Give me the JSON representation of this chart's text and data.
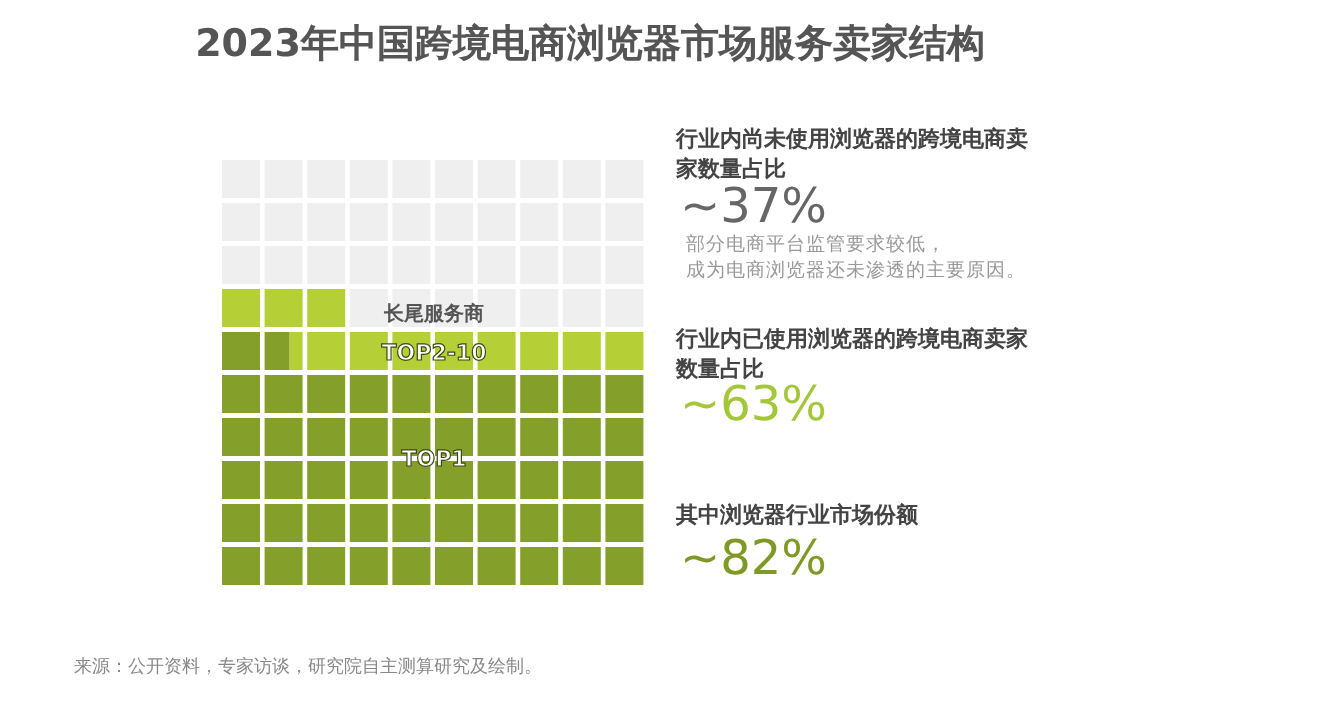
{
  "chart_data": {
    "type": "other",
    "title": "2023年中国跨境电商浏览器市场服务卖家结构",
    "values": [
      37,
      63,
      82
    ],
    "value_labels": [
      "~37%",
      "~63%",
      "~82%"
    ],
    "colors": [
      "#efefef",
      "#b5cf36",
      "#84a02a"
    ],
    "annotations": [
      "长尾服务商",
      "TOP2-10",
      "TOP1",
      "行业内尚未使用浏览器的跨境电商卖",
      "家数量占比",
      "部分电商平台监管要求较低，",
      "成为电商浏览器还未渗透的主要原因。",
      "行业内已使用浏览器的跨境电商卖家",
      "数量占比",
      "其中浏览器行业市场份额",
      "来源：公开资料，专家访谈，研究院自主测算研究及绘制。"
    ]
  }
}
